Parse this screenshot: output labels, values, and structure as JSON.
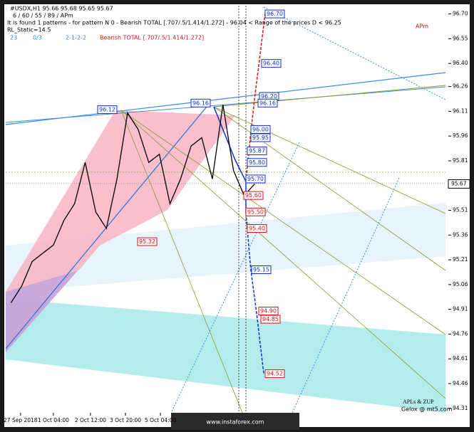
{
  "chart_data": {
    "type": "line",
    "symbol_line": "#USDX,H1  95.66 95.68 95.65 95.67",
    "settings_line": "6 / 60 / 55 / 89 / APm",
    "info_line": "It is found 1 patterns  -  for pattern N 0 - Bearish TOTAL [.707/.5/1.414/1.272] - 96.04 < Range of the prices D < 96.25",
    "static_line": "RL_Static=14.5",
    "counters": [
      "23",
      "0/3",
      "2-1-2-2"
    ],
    "pattern_name": "Bearish TOTAL [.707/.5/1.414/1.272]",
    "corner_tag": "APm",
    "footer_title": "APLs & ZUP",
    "footer_credit": "Gelox @ mt5.com",
    "watermark": "www.instaforex.com",
    "x": [
      0,
      1,
      2,
      3,
      4,
      5,
      6,
      7,
      8,
      9,
      10,
      11,
      12,
      13,
      14,
      15,
      16,
      17,
      18,
      19,
      20,
      21,
      22,
      23
    ],
    "values": [
      94.95,
      95.05,
      95.2,
      95.25,
      95.3,
      95.45,
      95.55,
      95.8,
      95.5,
      95.4,
      95.7,
      96.1,
      96.0,
      95.8,
      95.85,
      95.55,
      95.7,
      95.9,
      95.95,
      95.7,
      96.15,
      95.75,
      95.6,
      95.67
    ],
    "color": "#000000",
    "xlim": [
      -0.5,
      41
    ],
    "ylim": [
      94.24,
      96.75
    ],
    "xticks": [
      {
        "value": 0.9,
        "label": "27 Sep 2018"
      },
      {
        "value": 4,
        "label": "1 Oct 04:00"
      },
      {
        "value": 7.5,
        "label": "2 Oct 12:00"
      },
      {
        "value": 10.8,
        "label": "3 Oct 20:00"
      },
      {
        "value": 14.1,
        "label": "5 Oct 04:00"
      }
    ],
    "yticks": [
      {
        "value": 96.7,
        "label": "96.70"
      },
      96.55,
      {
        "value": 96.4,
        "label": "96.40"
      },
      96.26,
      96.11,
      95.96,
      95.81,
      95.51,
      95.36,
      95.21,
      95.06,
      94.91,
      94.76,
      94.61,
      94.46,
      94.31
    ],
    "last_price": 95.67,
    "levels": [
      {
        "value": 96.7,
        "label": "96.70",
        "color": "#1030d0"
      },
      {
        "value": 96.4,
        "label": "96.40",
        "color": "#1030d0"
      },
      {
        "value": 96.2,
        "label": "96.20",
        "color": "#1030d0"
      },
      {
        "value": 96.16,
        "label": "96.16",
        "color": "#1030d0"
      },
      {
        "value": 96.0,
        "label": "96.00",
        "color": "#1030d0"
      },
      {
        "value": 95.95,
        "label": "95.95",
        "color": "#1030d0"
      },
      {
        "value": 95.87,
        "label": "95.87",
        "color": "#1030d0"
      },
      {
        "value": 95.8,
        "label": "95.80",
        "color": "#1030d0"
      },
      {
        "value": 95.7,
        "label": "95.70",
        "color": "#1030d0"
      },
      {
        "value": 96.12,
        "label": "96.12",
        "color": "#1030d0"
      },
      {
        "value": 96.16,
        "label": "96.16",
        "color": "#1030d0"
      },
      {
        "value": 95.6,
        "label": "95.60",
        "color": "#e01010"
      },
      {
        "value": 95.5,
        "label": "95.50",
        "color": "#e01010"
      },
      {
        "value": 95.4,
        "label": "95.40",
        "color": "#e01010"
      },
      {
        "value": 95.15,
        "label": "95.15",
        "color": "#1030d0"
      },
      {
        "value": 94.9,
        "label": "94.90",
        "color": "#e01010"
      },
      {
        "value": 94.85,
        "label": "94.85",
        "color": "#e01010"
      },
      {
        "value": 94.52,
        "label": "94.52",
        "color": "#e01010"
      },
      {
        "value": 95.32,
        "label": "95.32",
        "color": "#e01010"
      }
    ]
  }
}
